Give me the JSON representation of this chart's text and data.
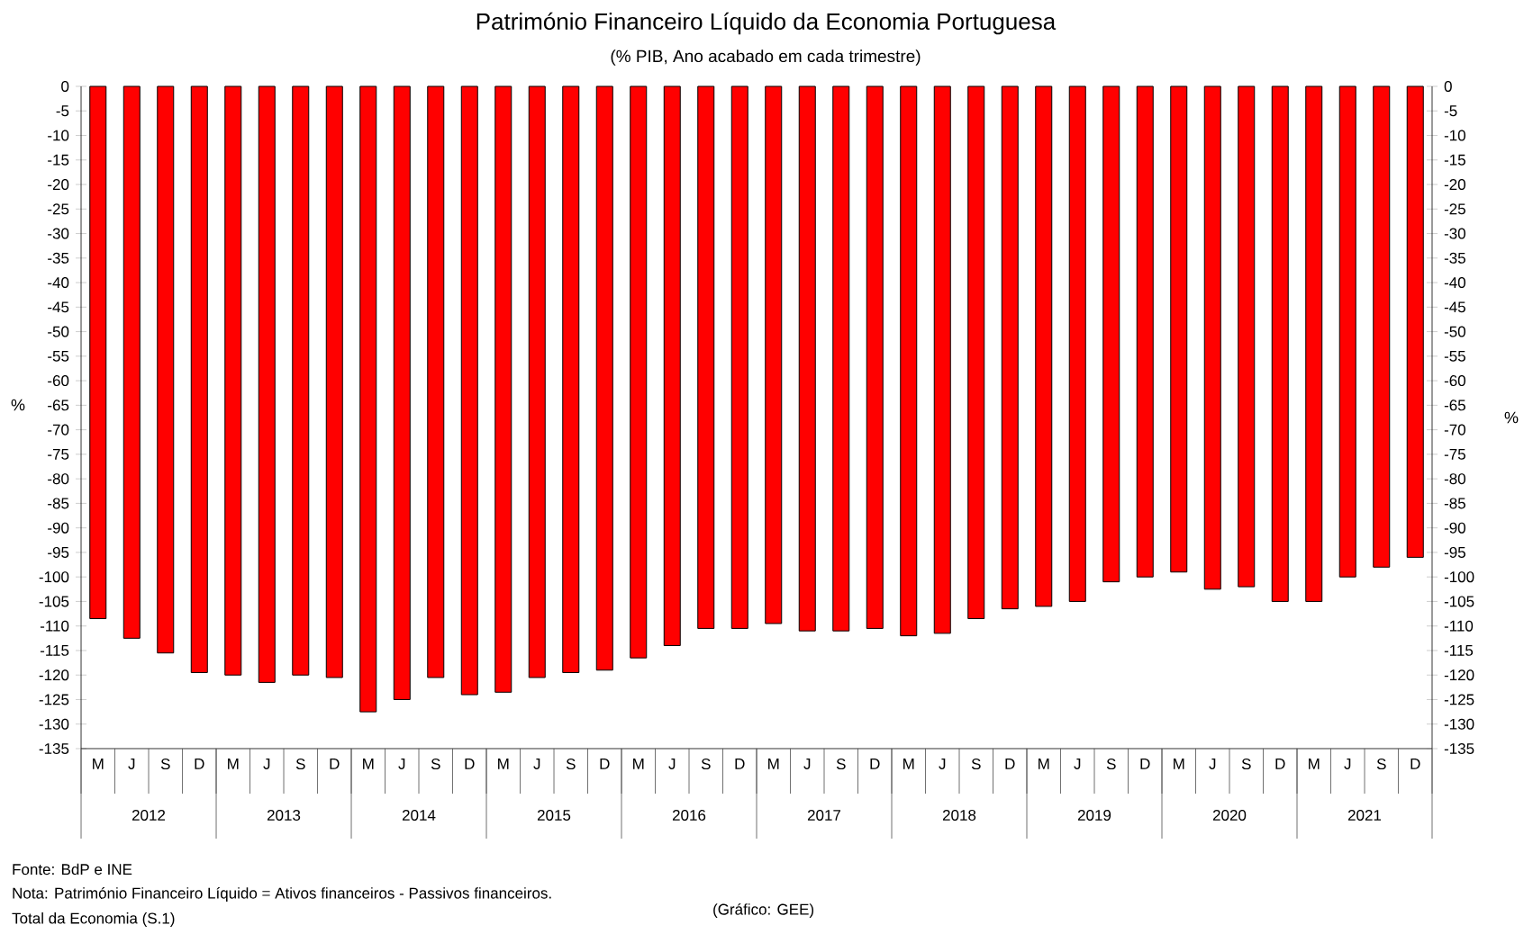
{
  "chart_data": {
    "type": "bar",
    "title": "Património Financeiro Líquido da Economia Portuguesa",
    "subtitle": "(% PIB, Ano acabado em cada trimestre)",
    "ylabel": "%",
    "y2label": "%",
    "categories": [
      "M",
      "J",
      "S",
      "D",
      "M",
      "J",
      "S",
      "D",
      "M",
      "J",
      "S",
      "D",
      "M",
      "J",
      "S",
      "D",
      "M",
      "J",
      "S",
      "D",
      "M",
      "J",
      "S",
      "D",
      "M",
      "J",
      "S",
      "D",
      "M",
      "J",
      "S",
      "D",
      "M",
      "J",
      "S",
      "D",
      "M",
      "J",
      "S",
      "D"
    ],
    "values": [
      -108.5,
      -112.5,
      -115.5,
      -119.5,
      -120,
      -121.5,
      -120,
      -120.5,
      -127.5,
      -125,
      -120.5,
      -124,
      -123.5,
      -120.5,
      -119.5,
      -119,
      -116.5,
      -114,
      -110.5,
      -110.5,
      -109.5,
      -111,
      -111,
      -110.5,
      -112,
      -111.5,
      -108.5,
      -106.5,
      -106,
      -105,
      -101,
      -100,
      -99,
      -102.5,
      -102,
      -105,
      -105,
      -100,
      -98,
      -96
    ],
    "color": "#ff0000",
    "ylim": [
      -135,
      0
    ],
    "yticks": [
      0,
      -5,
      -10,
      -15,
      -20,
      -25,
      -30,
      -35,
      -40,
      -45,
      -50,
      -55,
      -60,
      -65,
      -70,
      -75,
      -80,
      -85,
      -90,
      -95,
      -100,
      -105,
      -110,
      -115,
      -120,
      -125,
      -130,
      -135
    ],
    "y2lim": [
      -135,
      0
    ],
    "y2ticks": [
      0,
      -5,
      -10,
      -15,
      -20,
      -25,
      -30,
      -35,
      -40,
      -45,
      -50,
      -55,
      -60,
      -65,
      -70,
      -75,
      -80,
      -85,
      -90,
      -95,
      -100,
      -105,
      -110,
      -115,
      -120,
      -125,
      -130,
      -135
    ],
    "grid": false,
    "annotations": [
      {
        "text": "2012"
      },
      {
        "text": "2013"
      },
      {
        "text": "2014"
      },
      {
        "text": "2015"
      },
      {
        "text": "2016"
      },
      {
        "text": "2017"
      },
      {
        "text": "2018"
      },
      {
        "text": "2019"
      },
      {
        "text": "2020"
      },
      {
        "text": "2021"
      },
      "Fonte: BdP e INE",
      "Nota: Património Financeiro Líquido = Ativos financeiros - Passivos financeiros.",
      "Total da Economia (S.1)",
      "(Gráfico: GEE)"
    ]
  }
}
